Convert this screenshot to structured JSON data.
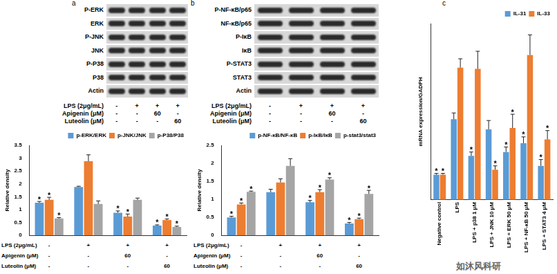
{
  "panel_labels": [
    "a",
    "b",
    "c"
  ],
  "watermark": "如沐风科研",
  "blots": [
    {
      "rows": [
        "P-ERK",
        "ERK",
        "P-JNK",
        "JNK",
        "P-P38",
        "P38",
        "Actin"
      ],
      "treatments": [
        {
          "name": "LPS (2μg/mL)",
          "values": [
            "-",
            "+",
            "+",
            "+"
          ]
        },
        {
          "name": "Apigenin (μM)",
          "values": [
            "-",
            "-",
            "60",
            "-"
          ]
        },
        {
          "name": "Luteolin (μM)",
          "values": [
            "-",
            "-",
            "-",
            "60"
          ]
        }
      ]
    },
    {
      "rows": [
        "P-NF-κB/p65",
        "NF-κB/p65",
        "P-IκB",
        "IκB",
        "P-STAT3",
        "STAT3",
        "Actin"
      ],
      "treatments": [
        {
          "name": "LPS (2μg/mL)",
          "values": [
            "-",
            "+",
            "+",
            "+"
          ]
        },
        {
          "name": "Apigenin (μM)",
          "values": [
            "-",
            "-",
            "60",
            "-"
          ]
        },
        {
          "name": "Luteolin (μM)",
          "values": [
            "-",
            "-",
            "-",
            "60"
          ]
        }
      ]
    }
  ],
  "chart_data": [
    {
      "type": "bar",
      "y_label": "Relative density",
      "categories": [
        null,
        null,
        null,
        null
      ],
      "series": [
        {
          "name": "p-ERK/ERK",
          "color": "#5b9bd5",
          "values": [
            1.27,
            1.88,
            0.88,
            0.38
          ],
          "errors": [
            0.05,
            0.03,
            0.07,
            0.03
          ],
          "stars": [
            "*",
            null,
            "*",
            "*"
          ]
        },
        {
          "name": "p-JNK/JNK",
          "color": "#ed7d31",
          "values": [
            1.38,
            2.88,
            0.73,
            0.6
          ],
          "errors": [
            0.1,
            0.25,
            0.1,
            0.04
          ],
          "stars": [
            "*",
            null,
            "*",
            "*"
          ]
        },
        {
          "name": "p-P38/P38",
          "color": "#a5a5a5",
          "values": [
            0.66,
            1.22,
            1.38,
            0.33
          ],
          "errors": [
            0.03,
            0.12,
            0.07,
            0.03
          ],
          "stars": [
            "*",
            null,
            null,
            "*"
          ]
        }
      ],
      "ylim": [
        0,
        3.5
      ],
      "yticks": [
        0,
        0.5,
        1,
        1.5,
        2,
        2.5,
        3,
        3.5
      ],
      "grid": false,
      "legend": "upper right",
      "treatments": [
        {
          "name": "LPS (2μg/mL)",
          "values": [
            "-",
            "+",
            "+",
            "+"
          ]
        },
        {
          "name": "Apigenin (μM)",
          "values": [
            "-",
            "-",
            "60",
            "-"
          ]
        },
        {
          "name": "Luteolin (μM)",
          "values": [
            "-",
            "-",
            "-",
            "60"
          ]
        }
      ]
    },
    {
      "type": "bar",
      "y_label": "Relative density",
      "categories": [
        null,
        null,
        null,
        null
      ],
      "series": [
        {
          "name": "p-NF-κB/NF-κB",
          "color": "#5b9bd5",
          "values": [
            0.5,
            1.2,
            0.92,
            0.33
          ],
          "errors": [
            0.03,
            0.08,
            0.05,
            0.03
          ],
          "stars": [
            "*",
            null,
            "*",
            "*"
          ]
        },
        {
          "name": "p-IκB/IκB",
          "color": "#ed7d31",
          "values": [
            0.86,
            1.47,
            1.2,
            0.45
          ],
          "errors": [
            0.04,
            0.1,
            0.07,
            0.03
          ],
          "stars": [
            "*",
            null,
            "*",
            "*"
          ]
        },
        {
          "name": "p-stat3/stat3",
          "color": "#a5a5a5",
          "values": [
            1.21,
            1.93,
            1.55,
            1.15
          ],
          "errors": [
            0.02,
            0.2,
            0.05,
            0.1
          ],
          "stars": [
            "*",
            null,
            "*",
            "*"
          ]
        }
      ],
      "ylim": [
        0,
        2.5
      ],
      "yticks": [
        0,
        0.5,
        1,
        1.5,
        2,
        2.5
      ],
      "grid": false,
      "legend": "upper right",
      "treatments": [
        {
          "name": "LPS (2μg/mL)",
          "values": [
            "-",
            "+",
            "+",
            "+"
          ]
        },
        {
          "name": "Apigenin (μM)",
          "values": [
            "-",
            "-",
            "60",
            "-"
          ]
        },
        {
          "name": "Luteolin (μM)",
          "values": [
            "-",
            "-",
            "-",
            "60"
          ]
        }
      ]
    },
    {
      "type": "bar",
      "y_label": "mRNA expression/GADPH",
      "categories": [
        "Negative control",
        "LPS",
        "LPS + p38 1 μM",
        "LPS + JNK 10 μM",
        "LPS + ERK 50 μM",
        "LPS + NF-κB 50 μM",
        "LPS + STAT3 4 μM"
      ],
      "series": [
        {
          "name": "IL-31",
          "color": "#5b9bd5",
          "values": [
            1.0,
            3.2,
            1.75,
            2.8,
            1.9,
            2.25,
            1.35
          ],
          "errors": [
            0.05,
            0.25,
            0.15,
            0.35,
            0.2,
            0.25,
            0.25
          ],
          "stars": [
            "*",
            null,
            "*",
            null,
            "*",
            "*",
            "*"
          ]
        },
        {
          "name": "IL-33",
          "color": "#ed7d31",
          "values": [
            1.0,
            5.25,
            5.2,
            1.2,
            2.85,
            5.75,
            2.4
          ],
          "errors": [
            0.05,
            0.35,
            0.7,
            0.15,
            0.55,
            0.8,
            0.35
          ],
          "stars": [
            "*",
            null,
            null,
            "*",
            "*",
            null,
            "*"
          ]
        }
      ],
      "ylim": [
        0,
        7
      ],
      "yticks": [],
      "grid": false,
      "legend": "upper right",
      "tick_labels": "x"
    }
  ]
}
